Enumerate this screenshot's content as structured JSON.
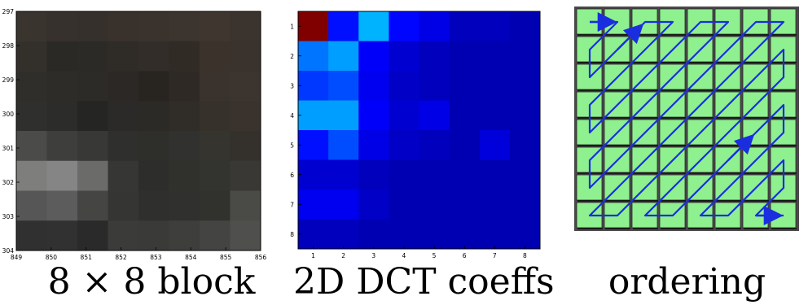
{
  "captions": {
    "block": "8 × 8 block",
    "dct": "2D DCT coeffs",
    "ordering": "ordering"
  },
  "chart_data": [
    {
      "type": "heatmap",
      "title": "",
      "xlabel": "",
      "ylabel": "",
      "x_ticks": [
        "849",
        "850",
        "851",
        "852",
        "853",
        "854",
        "855",
        "856"
      ],
      "y_ticks": [
        "297",
        "298",
        "299",
        "300",
        "301",
        "302",
        "303",
        "304"
      ],
      "xlim": [
        849,
        856
      ],
      "ylim": [
        297,
        304
      ],
      "colors": [
        [
          "#3a342f",
          "#36312c",
          "#35302c",
          "#38312c",
          "#3a322d",
          "#3b342f",
          "#403630",
          "#3b332e"
        ],
        [
          "#33302c",
          "#2b2926",
          "#2c2a27",
          "#2f2b27",
          "#322d28",
          "#312b26",
          "#3b322c",
          "#3a322c"
        ],
        [
          "#302e2b",
          "#2e2c29",
          "#2d2b28",
          "#2b2826",
          "#282420",
          "#2e2924",
          "#3a322c",
          "#3c342e"
        ],
        [
          "#2f2f2d",
          "#2c2c2a",
          "#252523",
          "#2b2a28",
          "#2c2a26",
          "#302c27",
          "#36312b",
          "#3a332d"
        ],
        [
          "#4b4b49",
          "#3e3e3c",
          "#383836",
          "#2f302d",
          "#2e2f2b",
          "#313130",
          "#35342f",
          "#34312c"
        ],
        [
          "#7e7e7d",
          "#858585",
          "#6b6b6a",
          "#363735",
          "#2d2e2b",
          "#30312d",
          "#33332f",
          "#3a3834"
        ],
        [
          "#575656",
          "#5d5c5c",
          "#454544",
          "#353534",
          "#2f302d",
          "#30312e",
          "#31312d",
          "#4a4a46"
        ],
        [
          "#303030",
          "#313131",
          "#2a2a2a",
          "#3b3b3a",
          "#3a3a38",
          "#3e3e3c",
          "#444443",
          "#4f4f4d"
        ]
      ]
    },
    {
      "type": "heatmap",
      "title": "",
      "xlabel": "",
      "ylabel": "",
      "x_ticks": [
        "1",
        "2",
        "3",
        "4",
        "5",
        "6",
        "7",
        "8"
      ],
      "y_ticks": [
        "1",
        "2",
        "3",
        "4",
        "5",
        "6",
        "7",
        "8"
      ],
      "values": [
        [
          1.0,
          0.14,
          0.3,
          0.13,
          0.1,
          0.06,
          0.06,
          0.05
        ],
        [
          0.24,
          0.28,
          0.12,
          0.08,
          0.06,
          0.05,
          0.05,
          0.05
        ],
        [
          0.18,
          0.2,
          0.11,
          0.07,
          0.06,
          0.05,
          0.05,
          0.05
        ],
        [
          0.28,
          0.28,
          0.12,
          0.08,
          0.1,
          0.05,
          0.05,
          0.05
        ],
        [
          0.14,
          0.2,
          0.1,
          0.07,
          0.06,
          0.05,
          0.09,
          0.05
        ],
        [
          0.08,
          0.08,
          0.06,
          0.05,
          0.05,
          0.05,
          0.05,
          0.05
        ],
        [
          0.11,
          0.11,
          0.07,
          0.05,
          0.05,
          0.05,
          0.05,
          0.05
        ],
        [
          0.06,
          0.06,
          0.05,
          0.05,
          0.05,
          0.05,
          0.05,
          0.05
        ]
      ],
      "colormap": "jet"
    }
  ],
  "ordering": {
    "rows": 8,
    "cols": 8,
    "tile_color": "#8ef08e",
    "path_color": "#1a2ee0",
    "sequence": [
      [
        0,
        0
      ],
      [
        0,
        1
      ],
      [
        1,
        0
      ],
      [
        2,
        0
      ],
      [
        1,
        1
      ],
      [
        0,
        2
      ],
      [
        0,
        3
      ],
      [
        1,
        2
      ],
      [
        2,
        1
      ],
      [
        3,
        0
      ],
      [
        4,
        0
      ],
      [
        3,
        1
      ],
      [
        2,
        2
      ],
      [
        1,
        3
      ],
      [
        0,
        4
      ],
      [
        0,
        5
      ],
      [
        1,
        4
      ],
      [
        2,
        3
      ],
      [
        3,
        2
      ],
      [
        4,
        1
      ],
      [
        5,
        0
      ],
      [
        6,
        0
      ],
      [
        5,
        1
      ],
      [
        4,
        2
      ],
      [
        3,
        3
      ],
      [
        2,
        4
      ],
      [
        1,
        5
      ],
      [
        0,
        6
      ],
      [
        0,
        7
      ],
      [
        1,
        6
      ],
      [
        2,
        5
      ],
      [
        3,
        4
      ],
      [
        4,
        3
      ],
      [
        5,
        2
      ],
      [
        6,
        1
      ],
      [
        7,
        0
      ],
      [
        7,
        1
      ],
      [
        6,
        2
      ],
      [
        5,
        3
      ],
      [
        4,
        4
      ],
      [
        3,
        5
      ],
      [
        2,
        6
      ],
      [
        1,
        7
      ],
      [
        2,
        7
      ],
      [
        3,
        6
      ],
      [
        4,
        5
      ],
      [
        5,
        4
      ],
      [
        6,
        3
      ],
      [
        7,
        2
      ],
      [
        7,
        3
      ],
      [
        6,
        4
      ],
      [
        5,
        5
      ],
      [
        4,
        6
      ],
      [
        3,
        7
      ],
      [
        4,
        7
      ],
      [
        5,
        6
      ],
      [
        6,
        5
      ],
      [
        7,
        4
      ],
      [
        7,
        5
      ],
      [
        6,
        6
      ],
      [
        5,
        7
      ],
      [
        6,
        7
      ],
      [
        7,
        6
      ],
      [
        7,
        7
      ]
    ]
  }
}
